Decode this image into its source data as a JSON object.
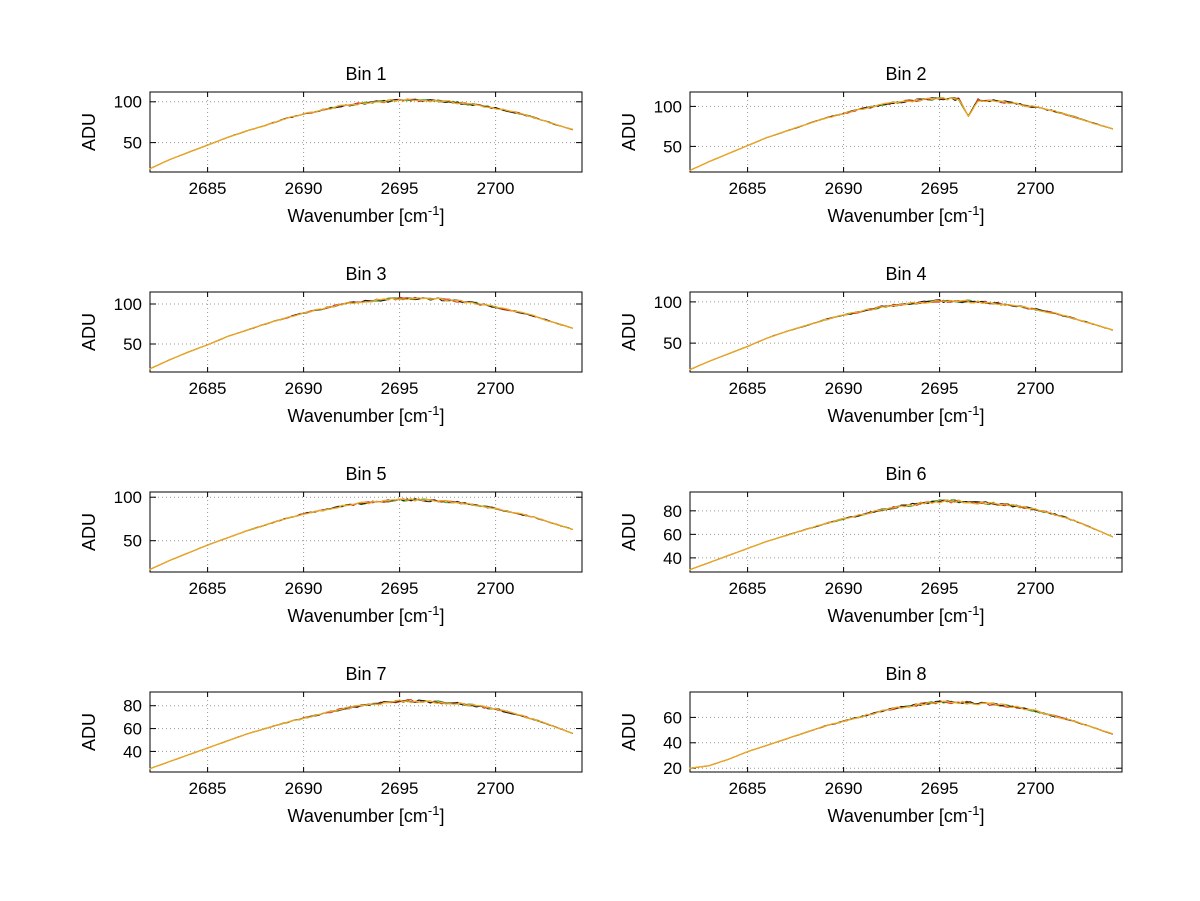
{
  "figure": {
    "background": "#ffffff",
    "line_color": "#f0a81e",
    "under_colors": [
      "#2ca02c",
      "#d62728",
      "#1a1a1a"
    ]
  },
  "chart_data": [
    {
      "type": "line",
      "title": "Bin 1",
      "xlabel": "Wavenumber [cm⁻¹]",
      "ylabel": "ADU",
      "xlim": [
        2682,
        2704.5
      ],
      "ylim": [
        14,
        112
      ],
      "xticks": [
        2685,
        2690,
        2695,
        2700
      ],
      "yticks": [
        50,
        100
      ],
      "grid": true,
      "noise": 1.6,
      "points": [
        [
          2682,
          18
        ],
        [
          2683,
          29
        ],
        [
          2684,
          38
        ],
        [
          2685,
          47
        ],
        [
          2686,
          56
        ],
        [
          2687,
          64
        ],
        [
          2688,
          71
        ],
        [
          2689,
          79
        ],
        [
          2690,
          85
        ],
        [
          2691,
          90
        ],
        [
          2692,
          95
        ],
        [
          2693,
          98
        ],
        [
          2694,
          100
        ],
        [
          2695,
          102
        ],
        [
          2696,
          102
        ],
        [
          2697,
          101
        ],
        [
          2698,
          99
        ],
        [
          2699,
          96
        ],
        [
          2700,
          92
        ],
        [
          2701,
          87
        ],
        [
          2702,
          81
        ],
        [
          2703,
          73
        ],
        [
          2704,
          66
        ]
      ]
    },
    {
      "type": "line",
      "title": "Bin 2",
      "xlabel": "Wavenumber [cm⁻¹]",
      "ylabel": "ADU",
      "xlim": [
        2682,
        2704.5
      ],
      "ylim": [
        18,
        118
      ],
      "xticks": [
        2685,
        2690,
        2695,
        2700
      ],
      "yticks": [
        50,
        100
      ],
      "grid": true,
      "noise": 1.7,
      "points": [
        [
          2682,
          20
        ],
        [
          2683,
          31
        ],
        [
          2684,
          41
        ],
        [
          2685,
          51
        ],
        [
          2686,
          61
        ],
        [
          2687,
          69
        ],
        [
          2688,
          77
        ],
        [
          2689,
          85
        ],
        [
          2690,
          91
        ],
        [
          2691,
          97
        ],
        [
          2692,
          102
        ],
        [
          2693,
          106
        ],
        [
          2694,
          108
        ],
        [
          2695,
          110
        ],
        [
          2696,
          109
        ],
        [
          2696.5,
          88
        ],
        [
          2697,
          108
        ],
        [
          2698,
          107
        ],
        [
          2699,
          103
        ],
        [
          2700,
          99
        ],
        [
          2701,
          94
        ],
        [
          2702,
          87
        ],
        [
          2703,
          79
        ],
        [
          2704,
          72
        ]
      ]
    },
    {
      "type": "line",
      "title": "Bin 3",
      "xlabel": "Wavenumber [cm⁻¹]",
      "ylabel": "ADU",
      "xlim": [
        2682,
        2704.5
      ],
      "ylim": [
        15,
        115
      ],
      "xticks": [
        2685,
        2690,
        2695,
        2700
      ],
      "yticks": [
        50,
        100
      ],
      "grid": true,
      "noise": 1.6,
      "points": [
        [
          2682,
          19
        ],
        [
          2683,
          30
        ],
        [
          2684,
          40
        ],
        [
          2685,
          49
        ],
        [
          2686,
          59
        ],
        [
          2687,
          67
        ],
        [
          2688,
          75
        ],
        [
          2689,
          82
        ],
        [
          2690,
          89
        ],
        [
          2691,
          94
        ],
        [
          2692,
          100
        ],
        [
          2693,
          103
        ],
        [
          2694,
          105
        ],
        [
          2695,
          107
        ],
        [
          2696,
          107
        ],
        [
          2697,
          106
        ],
        [
          2698,
          104
        ],
        [
          2699,
          101
        ],
        [
          2700,
          96
        ],
        [
          2701,
          91
        ],
        [
          2702,
          85
        ],
        [
          2703,
          77
        ],
        [
          2704,
          70
        ]
      ]
    },
    {
      "type": "line",
      "title": "Bin 4",
      "xlabel": "Wavenumber [cm⁻¹]",
      "ylabel": "ADU",
      "xlim": [
        2682,
        2704.5
      ],
      "ylim": [
        15,
        112
      ],
      "xticks": [
        2685,
        2690,
        2695,
        2700
      ],
      "yticks": [
        50,
        100
      ],
      "grid": true,
      "noise": 1.6,
      "points": [
        [
          2682,
          18
        ],
        [
          2683,
          28
        ],
        [
          2684,
          37
        ],
        [
          2685,
          46
        ],
        [
          2686,
          56
        ],
        [
          2687,
          64
        ],
        [
          2688,
          71
        ],
        [
          2689,
          78
        ],
        [
          2690,
          84
        ],
        [
          2691,
          89
        ],
        [
          2692,
          94
        ],
        [
          2693,
          97
        ],
        [
          2694,
          99
        ],
        [
          2695,
          101
        ],
        [
          2696,
          101
        ],
        [
          2697,
          100
        ],
        [
          2698,
          98
        ],
        [
          2699,
          95
        ],
        [
          2700,
          91
        ],
        [
          2701,
          86
        ],
        [
          2702,
          80
        ],
        [
          2703,
          73
        ],
        [
          2704,
          66
        ]
      ]
    },
    {
      "type": "line",
      "title": "Bin 5",
      "xlabel": "Wavenumber [cm⁻¹]",
      "ylabel": "ADU",
      "xlim": [
        2682,
        2704.5
      ],
      "ylim": [
        14,
        106
      ],
      "xticks": [
        2685,
        2690,
        2695,
        2700
      ],
      "yticks": [
        50,
        100
      ],
      "grid": true,
      "noise": 1.5,
      "points": [
        [
          2682,
          17
        ],
        [
          2683,
          27
        ],
        [
          2684,
          36
        ],
        [
          2685,
          45
        ],
        [
          2686,
          53
        ],
        [
          2687,
          61
        ],
        [
          2688,
          68
        ],
        [
          2689,
          75
        ],
        [
          2690,
          81
        ],
        [
          2691,
          85
        ],
        [
          2692,
          90
        ],
        [
          2693,
          93
        ],
        [
          2694,
          95
        ],
        [
          2695,
          97
        ],
        [
          2696,
          97
        ],
        [
          2697,
          96
        ],
        [
          2698,
          94
        ],
        [
          2699,
          91
        ],
        [
          2700,
          87
        ],
        [
          2701,
          82
        ],
        [
          2702,
          77
        ],
        [
          2703,
          70
        ],
        [
          2704,
          63
        ]
      ]
    },
    {
      "type": "line",
      "title": "Bin 6",
      "xlabel": "Wavenumber [cm⁻¹]",
      "ylabel": "ADU",
      "xlim": [
        2682,
        2704.5
      ],
      "ylim": [
        28,
        96
      ],
      "xticks": [
        2685,
        2690,
        2695,
        2700
      ],
      "yticks": [
        40,
        60,
        80
      ],
      "grid": true,
      "noise": 1.3,
      "points": [
        [
          2682,
          30
        ],
        [
          2683,
          36
        ],
        [
          2684,
          42
        ],
        [
          2685,
          48
        ],
        [
          2686,
          54
        ],
        [
          2687,
          59
        ],
        [
          2688,
          64
        ],
        [
          2689,
          69
        ],
        [
          2690,
          73
        ],
        [
          2691,
          77
        ],
        [
          2692,
          81
        ],
        [
          2693,
          84
        ],
        [
          2694,
          86
        ],
        [
          2695,
          88
        ],
        [
          2696,
          88
        ],
        [
          2697,
          87
        ],
        [
          2698,
          86
        ],
        [
          2699,
          84
        ],
        [
          2700,
          81
        ],
        [
          2701,
          77
        ],
        [
          2702,
          72
        ],
        [
          2703,
          65
        ],
        [
          2704,
          58
        ]
      ]
    },
    {
      "type": "line",
      "title": "Bin 7",
      "xlabel": "Wavenumber [cm⁻¹]",
      "ylabel": "ADU",
      "xlim": [
        2682,
        2704.5
      ],
      "ylim": [
        22,
        92
      ],
      "xticks": [
        2685,
        2690,
        2695,
        2700
      ],
      "yticks": [
        40,
        60,
        80
      ],
      "grid": true,
      "noise": 1.3,
      "points": [
        [
          2682,
          25
        ],
        [
          2683,
          31
        ],
        [
          2684,
          37
        ],
        [
          2685,
          43
        ],
        [
          2686,
          49
        ],
        [
          2687,
          55
        ],
        [
          2688,
          60
        ],
        [
          2689,
          65
        ],
        [
          2690,
          69
        ],
        [
          2691,
          73
        ],
        [
          2692,
          77
        ],
        [
          2693,
          80
        ],
        [
          2694,
          82
        ],
        [
          2695,
          84
        ],
        [
          2696,
          84
        ],
        [
          2697,
          83
        ],
        [
          2698,
          82
        ],
        [
          2699,
          80
        ],
        [
          2700,
          77
        ],
        [
          2701,
          73
        ],
        [
          2702,
          68
        ],
        [
          2703,
          62
        ],
        [
          2704,
          56
        ]
      ]
    },
    {
      "type": "line",
      "title": "Bin 8",
      "xlabel": "Wavenumber [cm⁻¹]",
      "ylabel": "ADU",
      "xlim": [
        2682,
        2704.5
      ],
      "ylim": [
        17,
        80
      ],
      "xticks": [
        2685,
        2690,
        2695,
        2700
      ],
      "yticks": [
        20,
        40,
        60
      ],
      "grid": true,
      "noise": 1.2,
      "points": [
        [
          2682,
          20
        ],
        [
          2683,
          22
        ],
        [
          2684,
          27
        ],
        [
          2685,
          33
        ],
        [
          2686,
          38
        ],
        [
          2687,
          43
        ],
        [
          2688,
          48
        ],
        [
          2689,
          53
        ],
        [
          2690,
          57
        ],
        [
          2691,
          61
        ],
        [
          2692,
          65
        ],
        [
          2693,
          68
        ],
        [
          2694,
          70
        ],
        [
          2695,
          72
        ],
        [
          2696,
          72
        ],
        [
          2697,
          71
        ],
        [
          2698,
          70
        ],
        [
          2699,
          68
        ],
        [
          2700,
          65
        ],
        [
          2701,
          61
        ],
        [
          2702,
          57
        ],
        [
          2703,
          52
        ],
        [
          2704,
          47
        ]
      ]
    }
  ]
}
